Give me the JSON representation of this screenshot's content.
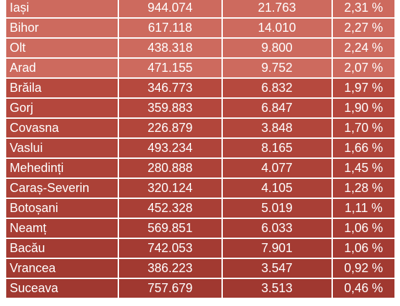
{
  "table": {
    "rows": [
      [
        "Iași",
        "944.074",
        "21.763",
        "2,31 %"
      ],
      [
        "Bihor",
        "617.118",
        "14.010",
        "2,27 %"
      ],
      [
        "Olt",
        "438.318",
        "9.800",
        "2,24 %"
      ],
      [
        "Arad",
        "471.155",
        "9.752",
        "2,07 %"
      ],
      [
        "Brăila",
        "346.773",
        "6.832",
        "1,97 %"
      ],
      [
        "Gorj",
        "359.883",
        "6.847",
        "1,90 %"
      ],
      [
        "Covasna",
        "226.879",
        "3.848",
        "1,70 %"
      ],
      [
        "Vaslui",
        "493.234",
        "8.165",
        "1,66 %"
      ],
      [
        "Mehedinți",
        "280.888",
        "4.077",
        "1,45 %"
      ],
      [
        "Caraș-Severin",
        "320.124",
        "4.105",
        "1,28 %"
      ],
      [
        "Botoșani",
        "452.328",
        "5.019",
        "1,11 %"
      ],
      [
        "Neamț",
        "569.851",
        "6.033",
        "1,06 %"
      ],
      [
        "Bacău",
        "742.053",
        "7.901",
        "1,06 %"
      ],
      [
        "Vrancea",
        "386.223",
        "3.547",
        "0,92 %"
      ],
      [
        "Suceava",
        "757.679",
        "3.513",
        "0,46 %"
      ]
    ]
  }
}
